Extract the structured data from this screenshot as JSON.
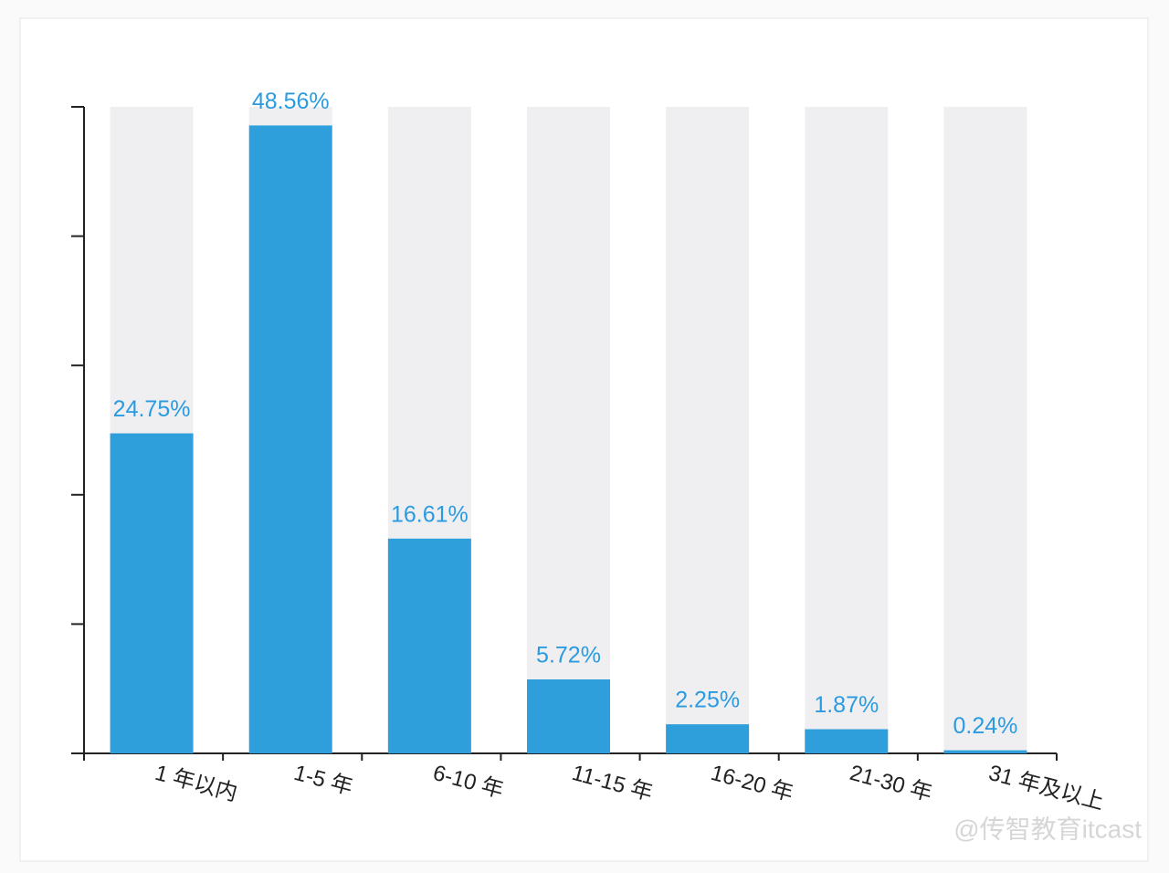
{
  "chart_data": {
    "type": "bar",
    "categories": [
      "1 年以内",
      "1-5 年",
      "6-10 年",
      "11-15 年",
      "16-20 年",
      "21-30 年",
      "31 年及以上"
    ],
    "values": [
      24.75,
      48.56,
      16.61,
      5.72,
      2.25,
      1.87,
      0.24
    ],
    "value_labels": [
      "24.75%",
      "48.56%",
      "16.61%",
      "5.72%",
      "2.25%",
      "1.87%",
      "0.24%"
    ],
    "color": "#2e9fdb",
    "track_color": "#efeff1",
    "label_color": "#2a9be0",
    "ylim": [
      0,
      50
    ],
    "yticks": [
      0,
      10,
      20,
      30,
      40,
      50
    ],
    "watermark": "@传智教育itcast"
  }
}
